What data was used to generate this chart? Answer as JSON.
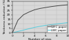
{
  "title": "",
  "xlabel": "Number of nips",
  "ylabel": "Thickness reduction (%)",
  "xlim": [
    0,
    10
  ],
  "ylim": [
    0,
    35
  ],
  "xticks": [
    0,
    2,
    4,
    6,
    8,
    10
  ],
  "yticks": [
    0,
    5,
    10,
    15,
    20,
    25,
    30,
    35
  ],
  "wfc_x": [
    0,
    1,
    2,
    3,
    4,
    5,
    6,
    7,
    8,
    9,
    10
  ],
  "wfc_y": [
    0,
    14,
    20,
    23,
    25.5,
    27,
    28,
    29,
    29.8,
    30.5,
    31
  ],
  "lwc_x": [
    0,
    1,
    2,
    3,
    4,
    5,
    6,
    7,
    8,
    9,
    10
  ],
  "lwc_y": [
    0,
    1.5,
    3,
    4.5,
    6,
    7.2,
    8.2,
    9.0,
    9.8,
    10.5,
    11.2
  ],
  "wfc_color": "#444444",
  "lwc_color": "#55ccdd",
  "wfc_label": "WFC paper",
  "lwc_label": "LWC paper",
  "grid_color": "#bbbbbb",
  "bg_color": "#d8d8d8",
  "legend_fontsize": 3.0,
  "axis_label_fontsize": 3.2,
  "tick_fontsize": 3.0
}
